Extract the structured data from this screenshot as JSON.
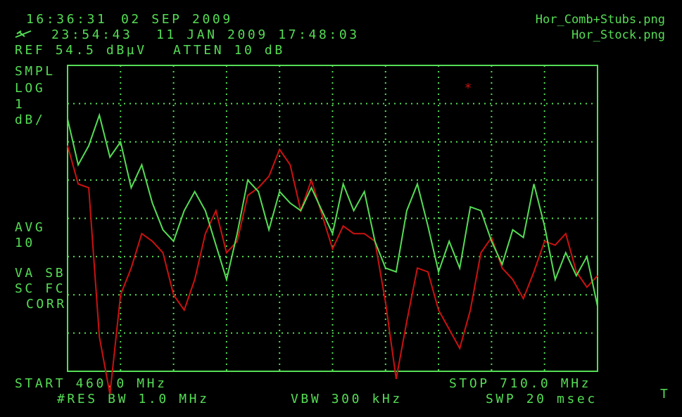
{
  "screen": {
    "clock_time": "16:36:31",
    "clock_date": "02 SEP 2009",
    "ref_time": "23:54:43",
    "ref_datetime": "11 JAN 2009 17:48:03",
    "ref_level": "REF 54.5 dBµV",
    "atten": "ATTEN 10 dB",
    "left_labels": [
      "SMPL",
      "LOG",
      "1",
      "dB/",
      "AVG",
      "10",
      "VA SB",
      "SC FC",
      "CORR"
    ],
    "start": "START 460.0 MHz",
    "stop": "STOP 710.0 MHz",
    "res_bw": "#RES BW 1.0 MHz",
    "vbw": "VBW 300 kHz",
    "swp": "SWP 20 msec",
    "trigger": "T",
    "marker": "*"
  },
  "chart_data": {
    "type": "line",
    "x": [
      460,
      465,
      470,
      475,
      480,
      485,
      490,
      495,
      500,
      505,
      510,
      515,
      520,
      525,
      530,
      535,
      540,
      545,
      550,
      555,
      560,
      565,
      570,
      575,
      580,
      585,
      590,
      595,
      600,
      605,
      610,
      615,
      620,
      625,
      630,
      635,
      640,
      645,
      650,
      655,
      660,
      665,
      670,
      675,
      680,
      685,
      690,
      695,
      700,
      705,
      710
    ],
    "series": [
      {
        "name": "Hor_Comb+Stubs.png",
        "color": "#55dd55",
        "values": [
          53.1,
          51.9,
          52.4,
          53.2,
          52.1,
          52.5,
          51.3,
          51.9,
          50.9,
          50.2,
          49.9,
          50.7,
          51.2,
          50.7,
          49.8,
          48.9,
          50.1,
          51.5,
          51.2,
          50.2,
          51.2,
          50.9,
          50.7,
          51.3,
          50.7,
          50.1,
          51.4,
          50.7,
          51.2,
          49.9,
          49.2,
          49.1,
          50.7,
          51.4,
          50.3,
          49.1,
          49.9,
          49.2,
          50.8,
          50.7,
          49.9,
          49.3,
          50.2,
          50.0,
          51.4,
          50.3,
          48.9,
          49.6,
          49.0,
          49.5,
          48.2
        ]
      },
      {
        "name": "Hor_Stock.png",
        "color": "#cc1111",
        "values": [
          52.4,
          51.4,
          51.3,
          47.4,
          45.9,
          48.5,
          49.2,
          50.1,
          49.9,
          49.6,
          48.5,
          48.1,
          48.9,
          50.1,
          50.7,
          49.6,
          49.9,
          51.1,
          51.3,
          51.6,
          52.3,
          51.9,
          50.7,
          51.5,
          50.6,
          49.7,
          50.3,
          50.1,
          50.1,
          49.9,
          48.3,
          46.3,
          47.8,
          49.2,
          49.1,
          48.1,
          47.6,
          47.1,
          48.1,
          49.6,
          50.0,
          49.2,
          48.9,
          48.4,
          49.1,
          49.9,
          49.8,
          50.1,
          49.1,
          48.7,
          49.0
        ]
      }
    ],
    "xlim": [
      460,
      710
    ],
    "ylim": [
      46.5,
      54.5
    ],
    "xticks": [
      460,
      485,
      510,
      535,
      560,
      585,
      610,
      635,
      660,
      685,
      710
    ],
    "yticks": [
      46.5,
      47.5,
      48.5,
      49.5,
      50.5,
      51.5,
      52.5,
      53.5,
      54.5
    ],
    "grid": true
  }
}
